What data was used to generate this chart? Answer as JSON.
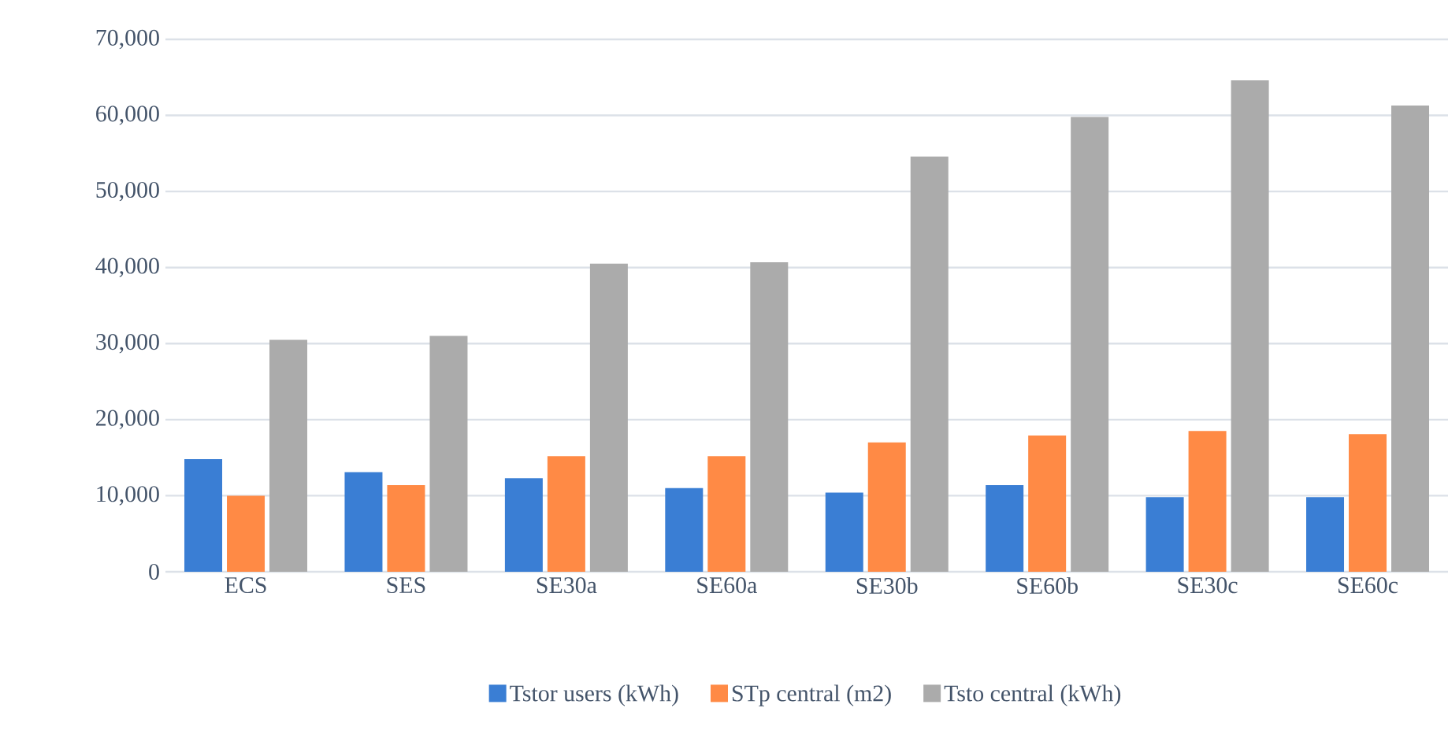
{
  "chart_data": {
    "type": "bar",
    "categories": [
      "ECS",
      "SES",
      "SE30a",
      "SE60a",
      "SE30b",
      "SE60b",
      "SE30c",
      "SE60c"
    ],
    "series": [
      {
        "name": "Tstor users (kWh)",
        "color": "#3a7ed4",
        "values": [
          14800,
          13100,
          12300,
          11000,
          10400,
          11400,
          9800,
          9800
        ]
      },
      {
        "name": "STp central (m2)",
        "color": "#ff8a45",
        "values": [
          10000,
          11400,
          15200,
          15200,
          17000,
          17900,
          18500,
          18100
        ]
      },
      {
        "name": "Tsto central  (kWh)",
        "color": "#ababab",
        "values": [
          30500,
          31000,
          40500,
          40700,
          54600,
          59800,
          64600,
          61300
        ]
      }
    ],
    "ylim": [
      0,
      70000
    ],
    "yticks": [
      {
        "value": 0,
        "label": "0"
      },
      {
        "value": 10000,
        "label": "10,000"
      },
      {
        "value": 20000,
        "label": "20,000"
      },
      {
        "value": 30000,
        "label": "30,000"
      },
      {
        "value": 40000,
        "label": "40,000"
      },
      {
        "value": 50000,
        "label": "50,000"
      },
      {
        "value": 60000,
        "label": "60,000"
      },
      {
        "value": 70000,
        "label": "70,000"
      }
    ],
    "grid": "y",
    "legend": "bottom"
  }
}
